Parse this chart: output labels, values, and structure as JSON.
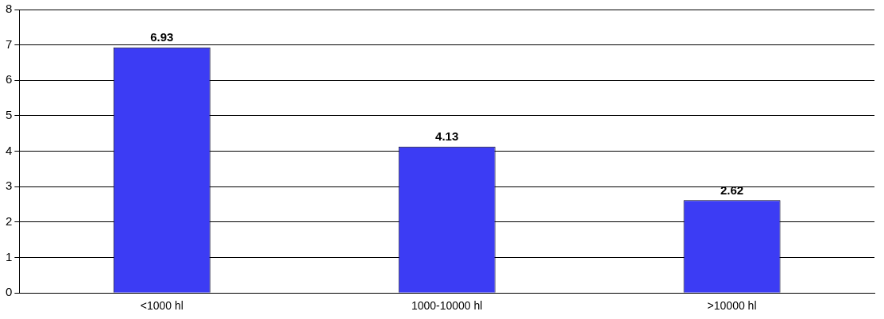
{
  "chart_data": {
    "type": "bar",
    "categories": [
      "<1000 hl",
      "1000-10000 hl",
      ">10000 hl"
    ],
    "values": [
      6.93,
      4.13,
      2.62
    ],
    "color": "#3c3cf4",
    "ylim": [
      0,
      8
    ],
    "yticks": [
      0,
      1,
      2,
      3,
      4,
      5,
      6,
      7,
      8
    ],
    "grid": "y",
    "legend": false,
    "data_labels": true
  }
}
